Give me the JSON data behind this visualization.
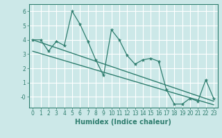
{
  "xlabel": "Humidex (Indice chaleur)",
  "background_color": "#cce8e8",
  "grid_color": "#ffffff",
  "line_color": "#2e7d6e",
  "x_data": [
    0,
    1,
    2,
    3,
    4,
    5,
    6,
    7,
    8,
    9,
    10,
    11,
    12,
    13,
    14,
    15,
    16,
    17,
    18,
    19,
    20,
    21,
    22,
    23
  ],
  "line1_y": [
    4.0,
    4.0,
    3.2,
    3.9,
    3.6,
    6.0,
    5.1,
    3.9,
    2.6,
    1.5,
    4.7,
    4.0,
    2.9,
    2.3,
    2.6,
    2.7,
    2.5,
    0.5,
    -0.5,
    -0.5,
    -0.1,
    -0.3,
    1.2,
    -0.1
  ],
  "trend1_x": [
    0,
    23
  ],
  "trend1_y": [
    4.0,
    -0.3
  ],
  "trend2_x": [
    0,
    23
  ],
  "trend2_y": [
    3.2,
    -0.55
  ],
  "xlim": [
    -0.5,
    23.5
  ],
  "ylim": [
    -0.75,
    6.5
  ],
  "yticks": [
    0,
    1,
    2,
    3,
    4,
    5,
    6
  ],
  "ytick_labels": [
    "-0",
    "1",
    "2",
    "3",
    "4",
    "5",
    "6"
  ],
  "xticks": [
    0,
    1,
    2,
    3,
    4,
    5,
    6,
    7,
    8,
    9,
    10,
    11,
    12,
    13,
    14,
    15,
    16,
    17,
    18,
    19,
    20,
    21,
    22,
    23
  ],
  "tick_fontsize": 5.5,
  "label_fontsize": 7.0
}
